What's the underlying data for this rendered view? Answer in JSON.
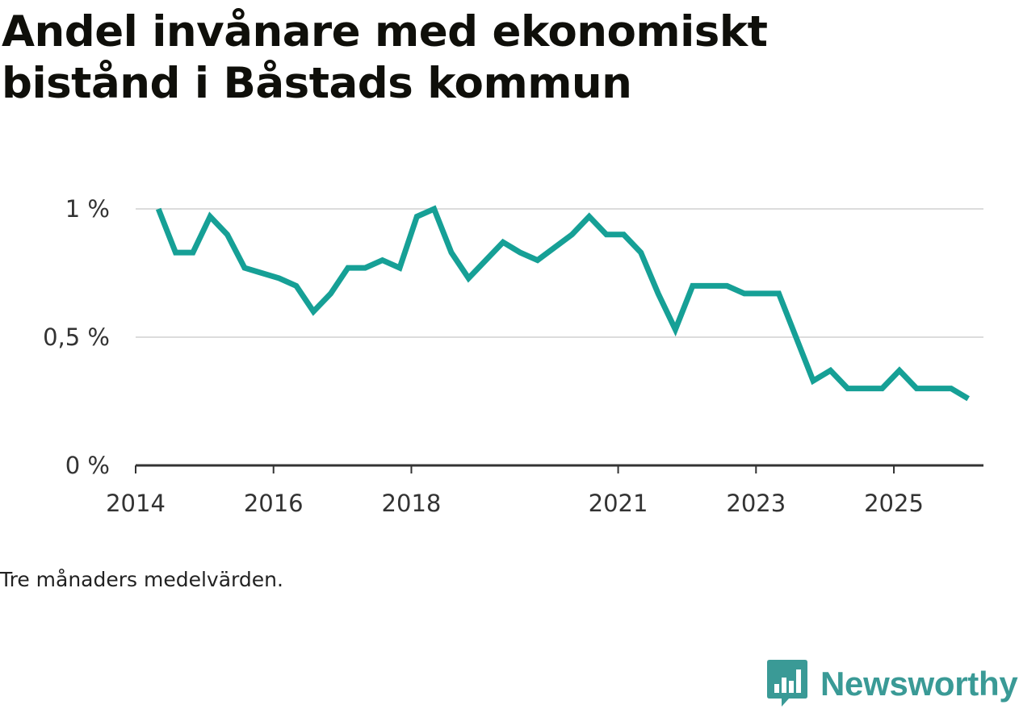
{
  "title": "Andel invånare med ekonomiskt bistånd i Båstads kommun",
  "footnote": "Tre månaders medelvärden.",
  "brand": {
    "name": "Newsworthy",
    "logo_icon": "bar-chart-speech-bubble-icon",
    "color": "#3a9a96"
  },
  "colors": {
    "line": "#16a096",
    "grid": "#dcdcdc",
    "axis": "#333333"
  },
  "chart_data": {
    "type": "line",
    "title": "Andel invånare med ekonomiskt bistånd i Båstads kommun",
    "xlabel": "",
    "ylabel": "",
    "ylim": [
      0,
      1
    ],
    "xlim": [
      2014,
      2026.3
    ],
    "grid": true,
    "y_ticks": [
      {
        "value": 0,
        "label": "0 %"
      },
      {
        "value": 0.5,
        "label": "0,5 %"
      },
      {
        "value": 1,
        "label": "1 %"
      }
    ],
    "x_ticks": [
      {
        "value": 2014,
        "label": "2014"
      },
      {
        "value": 2016,
        "label": "2016"
      },
      {
        "value": 2018,
        "label": "2018"
      },
      {
        "value": 2021,
        "label": "2021"
      },
      {
        "value": 2023,
        "label": "2023"
      },
      {
        "value": 2025,
        "label": "2025"
      }
    ],
    "series": [
      {
        "name": "Andel invånare med ekonomiskt bistånd",
        "x": [
          2014.33,
          2014.58,
          2014.83,
          2015.08,
          2015.33,
          2015.58,
          2015.83,
          2016.08,
          2016.33,
          2016.58,
          2016.83,
          2017.08,
          2017.33,
          2017.58,
          2017.83,
          2018.08,
          2018.33,
          2018.58,
          2018.83,
          2019.08,
          2019.33,
          2019.58,
          2019.83,
          2020.08,
          2020.33,
          2020.58,
          2020.83,
          2021.08,
          2021.33,
          2021.58,
          2021.83,
          2022.08,
          2022.33,
          2022.58,
          2022.83,
          2023.08,
          2023.33,
          2023.58,
          2023.83,
          2024.08,
          2024.33,
          2024.58,
          2024.83,
          2025.08,
          2025.33,
          2025.58,
          2025.83,
          2026.08
        ],
        "values": [
          1.0,
          0.83,
          0.83,
          0.97,
          0.9,
          0.77,
          0.75,
          0.73,
          0.7,
          0.6,
          0.67,
          0.77,
          0.77,
          0.8,
          0.77,
          0.97,
          1.0,
          0.83,
          0.73,
          0.8,
          0.87,
          0.83,
          0.8,
          0.85,
          0.9,
          0.97,
          0.9,
          0.9,
          0.83,
          0.67,
          0.53,
          0.7,
          0.7,
          0.7,
          0.67,
          0.67,
          0.67,
          0.5,
          0.33,
          0.37,
          0.3,
          0.3,
          0.3,
          0.37,
          0.3,
          0.3,
          0.3,
          0.26
        ]
      }
    ]
  }
}
